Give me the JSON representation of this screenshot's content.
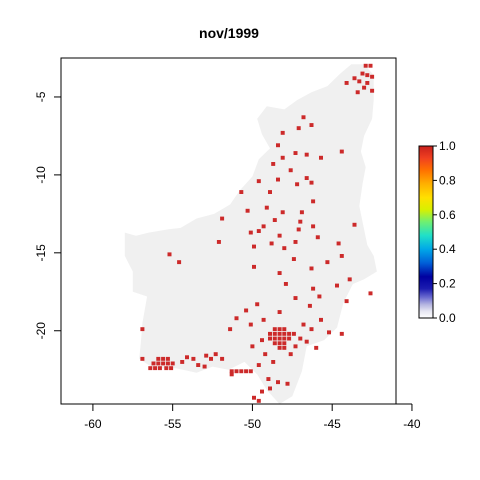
{
  "chart_data": {
    "type": "heatmap",
    "title": "nov/1999",
    "xlabel": "",
    "ylabel": "",
    "xlim": [
      -62,
      -41
    ],
    "ylim": [
      -24.7,
      -2.5
    ],
    "x_ticks": [
      -60,
      -55,
      -50,
      -45,
      -40
    ],
    "y_ticks": [
      -5,
      -10,
      -15,
      -20
    ],
    "grid": false,
    "cell_size_deg": 0.25,
    "legend": {
      "position": "right",
      "type": "colorbar",
      "min": 0.0,
      "max": 1.0,
      "ticks": [
        "0.0",
        "0.2",
        "0.4",
        "0.6",
        "0.8",
        "1.0"
      ]
    },
    "colors": {
      "background_value_0": "#f0f0f0",
      "value_1": "#cc2a2a"
    },
    "background_region": {
      "value": 0.0,
      "outline": [
        [
          -58.0,
          -13.7
        ],
        [
          -58.0,
          -15.2
        ],
        [
          -57.5,
          -16.2
        ],
        [
          -57.5,
          -17.5
        ],
        [
          -56.6,
          -17.8
        ],
        [
          -56.9,
          -19.5
        ],
        [
          -57.0,
          -20.8
        ],
        [
          -57.1,
          -21.8
        ],
        [
          -56.2,
          -22.4
        ],
        [
          -54.8,
          -22.4
        ],
        [
          -53.5,
          -22.7
        ],
        [
          -52.5,
          -22.3
        ],
        [
          -51.5,
          -22.5
        ],
        [
          -50.5,
          -22.0
        ],
        [
          -49.7,
          -22.8
        ],
        [
          -49.1,
          -23.8
        ],
        [
          -48.3,
          -24.7
        ],
        [
          -47.5,
          -24.2
        ],
        [
          -46.9,
          -22.6
        ],
        [
          -46.6,
          -21.0
        ],
        [
          -45.5,
          -20.6
        ],
        [
          -44.7,
          -19.8
        ],
        [
          -44.3,
          -18.2
        ],
        [
          -43.7,
          -17.0
        ],
        [
          -43.0,
          -16.7
        ],
        [
          -42.2,
          -16.2
        ],
        [
          -42.4,
          -15.2
        ],
        [
          -42.8,
          -14.5
        ],
        [
          -43.0,
          -13.5
        ],
        [
          -43.3,
          -12.0
        ],
        [
          -43.1,
          -10.6
        ],
        [
          -42.9,
          -9.5
        ],
        [
          -43.2,
          -8.5
        ],
        [
          -43.0,
          -7.5
        ],
        [
          -42.5,
          -6.4
        ],
        [
          -42.4,
          -5.2
        ],
        [
          -42.4,
          -3.6
        ],
        [
          -43.0,
          -2.9
        ],
        [
          -43.8,
          -2.9
        ],
        [
          -44.5,
          -3.5
        ],
        [
          -45.3,
          -4.3
        ],
        [
          -46.3,
          -4.7
        ],
        [
          -47.2,
          -5.2
        ],
        [
          -48.0,
          -5.8
        ],
        [
          -49.1,
          -5.6
        ],
        [
          -49.7,
          -6.4
        ],
        [
          -49.4,
          -7.4
        ],
        [
          -48.9,
          -8.3
        ],
        [
          -49.6,
          -9.0
        ],
        [
          -50.0,
          -10.1
        ],
        [
          -50.8,
          -11.0
        ],
        [
          -51.4,
          -11.9
        ],
        [
          -52.4,
          -12.5
        ],
        [
          -53.5,
          -12.8
        ],
        [
          -54.5,
          -13.4
        ],
        [
          -55.3,
          -13.5
        ],
        [
          -56.5,
          -13.7
        ],
        [
          -57.3,
          -13.9
        ]
      ]
    },
    "cells_value_1": [
      [
        -42.9,
        -3.0
      ],
      [
        -42.6,
        -3.0
      ],
      [
        -43.1,
        -3.5
      ],
      [
        -42.8,
        -3.6
      ],
      [
        -42.5,
        -3.7
      ],
      [
        -43.6,
        -3.8
      ],
      [
        -43.3,
        -4.0
      ],
      [
        -42.8,
        -4.1
      ],
      [
        -44.1,
        -4.1
      ],
      [
        -42.5,
        -4.6
      ],
      [
        -43.0,
        -4.4
      ],
      [
        -43.4,
        -4.7
      ],
      [
        -46.8,
        -6.3
      ],
      [
        -46.3,
        -6.8
      ],
      [
        -47.1,
        -7.0
      ],
      [
        -48.1,
        -7.3
      ],
      [
        -48.4,
        -8.1
      ],
      [
        -46.6,
        -8.7
      ],
      [
        -48.1,
        -8.9
      ],
      [
        -47.3,
        -8.6
      ],
      [
        -45.7,
        -8.9
      ],
      [
        -44.4,
        -8.5
      ],
      [
        -48.7,
        -9.3
      ],
      [
        -47.6,
        -9.7
      ],
      [
        -48.4,
        -10.3
      ],
      [
        -46.6,
        -10.2
      ],
      [
        -46.3,
        -10.5
      ],
      [
        -49.6,
        -10.4
      ],
      [
        -47.2,
        -10.6
      ],
      [
        -48.9,
        -11.1
      ],
      [
        -50.7,
        -11.1
      ],
      [
        -46.2,
        -11.7
      ],
      [
        -49.1,
        -12.1
      ],
      [
        -48.1,
        -12.4
      ],
      [
        -46.9,
        -12.4
      ],
      [
        -48.6,
        -12.9
      ],
      [
        -47.0,
        -13.0
      ],
      [
        -46.2,
        -13.3
      ],
      [
        -49.3,
        -13.3
      ],
      [
        -51.9,
        -12.8
      ],
      [
        -50.1,
        -13.7
      ],
      [
        -49.9,
        -14.6
      ],
      [
        -48.3,
        -13.9
      ],
      [
        -47.3,
        -14.3
      ],
      [
        -48.8,
        -14.4
      ],
      [
        -49.6,
        -13.6
      ],
      [
        -48.0,
        -14.7
      ],
      [
        -47.4,
        -15.4
      ],
      [
        -49.9,
        -15.9
      ],
      [
        -48.3,
        -16.3
      ],
      [
        -46.3,
        -16.0
      ],
      [
        -45.3,
        -15.6
      ],
      [
        -44.4,
        -15.2
      ],
      [
        -43.6,
        -13.2
      ],
      [
        -44.6,
        -14.4
      ],
      [
        -45.9,
        -14.0
      ],
      [
        -47.1,
        -13.5
      ],
      [
        -50.3,
        -12.3
      ],
      [
        -52.1,
        -14.3
      ],
      [
        -55.2,
        -15.1
      ],
      [
        -54.6,
        -15.6
      ],
      [
        -47.9,
        -17.0
      ],
      [
        -46.2,
        -17.3
      ],
      [
        -44.7,
        -17.1
      ],
      [
        -43.9,
        -16.7
      ],
      [
        -42.6,
        -17.6
      ],
      [
        -45.8,
        -17.8
      ],
      [
        -47.3,
        -17.9
      ],
      [
        -46.4,
        -18.4
      ],
      [
        -48.3,
        -18.8
      ],
      [
        -49.7,
        -18.3
      ],
      [
        -50.4,
        -18.7
      ],
      [
        -51.0,
        -19.2
      ],
      [
        -50.1,
        -19.6
      ],
      [
        -49.3,
        -19.3
      ],
      [
        -44.1,
        -18.1
      ],
      [
        -48.6,
        -19.9
      ],
      [
        -48.3,
        -19.9
      ],
      [
        -48.0,
        -19.9
      ],
      [
        -48.9,
        -20.2
      ],
      [
        -48.6,
        -20.2
      ],
      [
        -48.3,
        -20.2
      ],
      [
        -48.0,
        -20.2
      ],
      [
        -47.7,
        -20.2
      ],
      [
        -48.9,
        -20.5
      ],
      [
        -48.6,
        -20.5
      ],
      [
        -48.3,
        -20.5
      ],
      [
        -48.0,
        -20.5
      ],
      [
        -47.7,
        -20.5
      ],
      [
        -48.6,
        -20.8
      ],
      [
        -48.3,
        -20.8
      ],
      [
        -48.0,
        -20.8
      ],
      [
        -48.3,
        -21.1
      ],
      [
        -48.0,
        -21.1
      ],
      [
        -49.4,
        -20.6
      ],
      [
        -47.4,
        -20.2
      ],
      [
        -46.8,
        -19.6
      ],
      [
        -46.3,
        -19.9
      ],
      [
        -44.4,
        -20.2
      ],
      [
        -47.6,
        -21.5
      ],
      [
        -46.6,
        -20.7
      ],
      [
        -46.0,
        -21.1
      ],
      [
        -45.2,
        -20.1
      ],
      [
        -45.7,
        -19.3
      ],
      [
        -47.0,
        -20.5
      ],
      [
        -47.3,
        -21.0
      ],
      [
        -49.2,
        -21.5
      ],
      [
        -50.0,
        -21.0
      ],
      [
        -51.4,
        -19.9
      ],
      [
        -48.7,
        -22.0
      ],
      [
        -49.6,
        -22.2
      ],
      [
        -51.3,
        -22.6
      ],
      [
        -51.0,
        -22.6
      ],
      [
        -50.7,
        -22.6
      ],
      [
        -50.4,
        -22.6
      ],
      [
        -50.1,
        -22.6
      ],
      [
        -51.3,
        -22.8
      ],
      [
        -49.0,
        -23.1
      ],
      [
        -48.4,
        -23.3
      ],
      [
        -48.9,
        -23.7
      ],
      [
        -49.4,
        -23.9
      ],
      [
        -49.9,
        -24.3
      ],
      [
        -49.6,
        -24.5
      ],
      [
        -47.8,
        -23.4
      ],
      [
        -55.9,
        -21.8
      ],
      [
        -55.6,
        -21.8
      ],
      [
        -55.3,
        -21.8
      ],
      [
        -56.2,
        -22.1
      ],
      [
        -55.9,
        -22.1
      ],
      [
        -55.6,
        -22.1
      ],
      [
        -55.3,
        -22.1
      ],
      [
        -55.0,
        -22.1
      ],
      [
        -56.4,
        -22.4
      ],
      [
        -56.1,
        -22.4
      ],
      [
        -55.8,
        -22.4
      ],
      [
        -55.4,
        -22.4
      ],
      [
        -55.1,
        -22.4
      ],
      [
        -54.4,
        -22.0
      ],
      [
        -54.1,
        -21.7
      ],
      [
        -53.7,
        -21.8
      ],
      [
        -53.4,
        -22.2
      ],
      [
        -52.9,
        -21.6
      ],
      [
        -52.6,
        -21.8
      ],
      [
        -52.3,
        -21.5
      ],
      [
        -51.9,
        -21.8
      ],
      [
        -53.0,
        -22.3
      ],
      [
        -56.9,
        -21.8
      ],
      [
        -56.9,
        -19.9
      ]
    ]
  }
}
